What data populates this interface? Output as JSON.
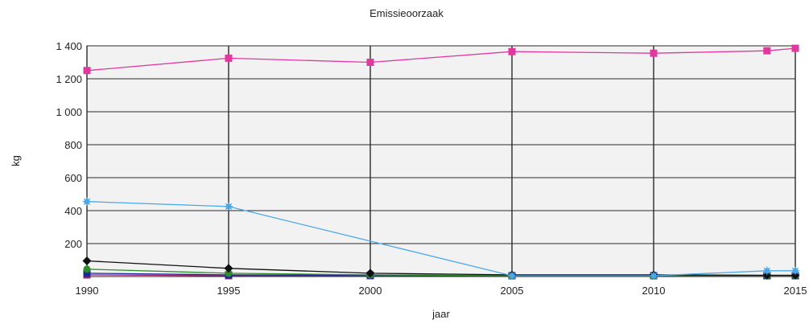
{
  "chart_data": {
    "type": "line",
    "title": "Emissieoorzaak",
    "xlabel": "jaar",
    "ylabel": "kg",
    "x": [
      1990,
      1995,
      2000,
      2005,
      2010,
      2014,
      2015
    ],
    "x_ticks": [
      1990,
      1995,
      2000,
      2005,
      2010,
      2015
    ],
    "y_ticks": [
      200,
      400,
      600,
      800,
      1000,
      1200,
      1400
    ],
    "y_tick_labels": [
      "200",
      "400",
      "600",
      "800",
      "1 000",
      "1 200",
      "1 400"
    ],
    "xlim": [
      1990,
      2015
    ],
    "ylim": [
      0,
      1400
    ],
    "grid": true,
    "plot_background": "#f2f2f2",
    "series": [
      {
        "color": "#e0389f",
        "marker": "square",
        "values": [
          1250,
          1325,
          1300,
          1365,
          1355,
          1370,
          1385
        ]
      },
      {
        "color": "#4aa8e8",
        "marker": "star",
        "values": [
          455,
          425,
          null,
          5,
          5,
          35,
          35
        ]
      },
      {
        "color": "#111111",
        "marker": "diamond",
        "values": [
          95,
          50,
          20,
          10,
          10,
          8,
          8
        ]
      },
      {
        "color": "#2e8b2e",
        "marker": "circle",
        "values": [
          45,
          20,
          10,
          5,
          5,
          5,
          5
        ]
      },
      {
        "color": "#1a2a9a",
        "marker": "square",
        "values": [
          20,
          10,
          8,
          5,
          5,
          5,
          5
        ]
      },
      {
        "color": "#a0206a",
        "marker": "square",
        "values": [
          10,
          5,
          5,
          5,
          5,
          5,
          5
        ]
      }
    ]
  }
}
